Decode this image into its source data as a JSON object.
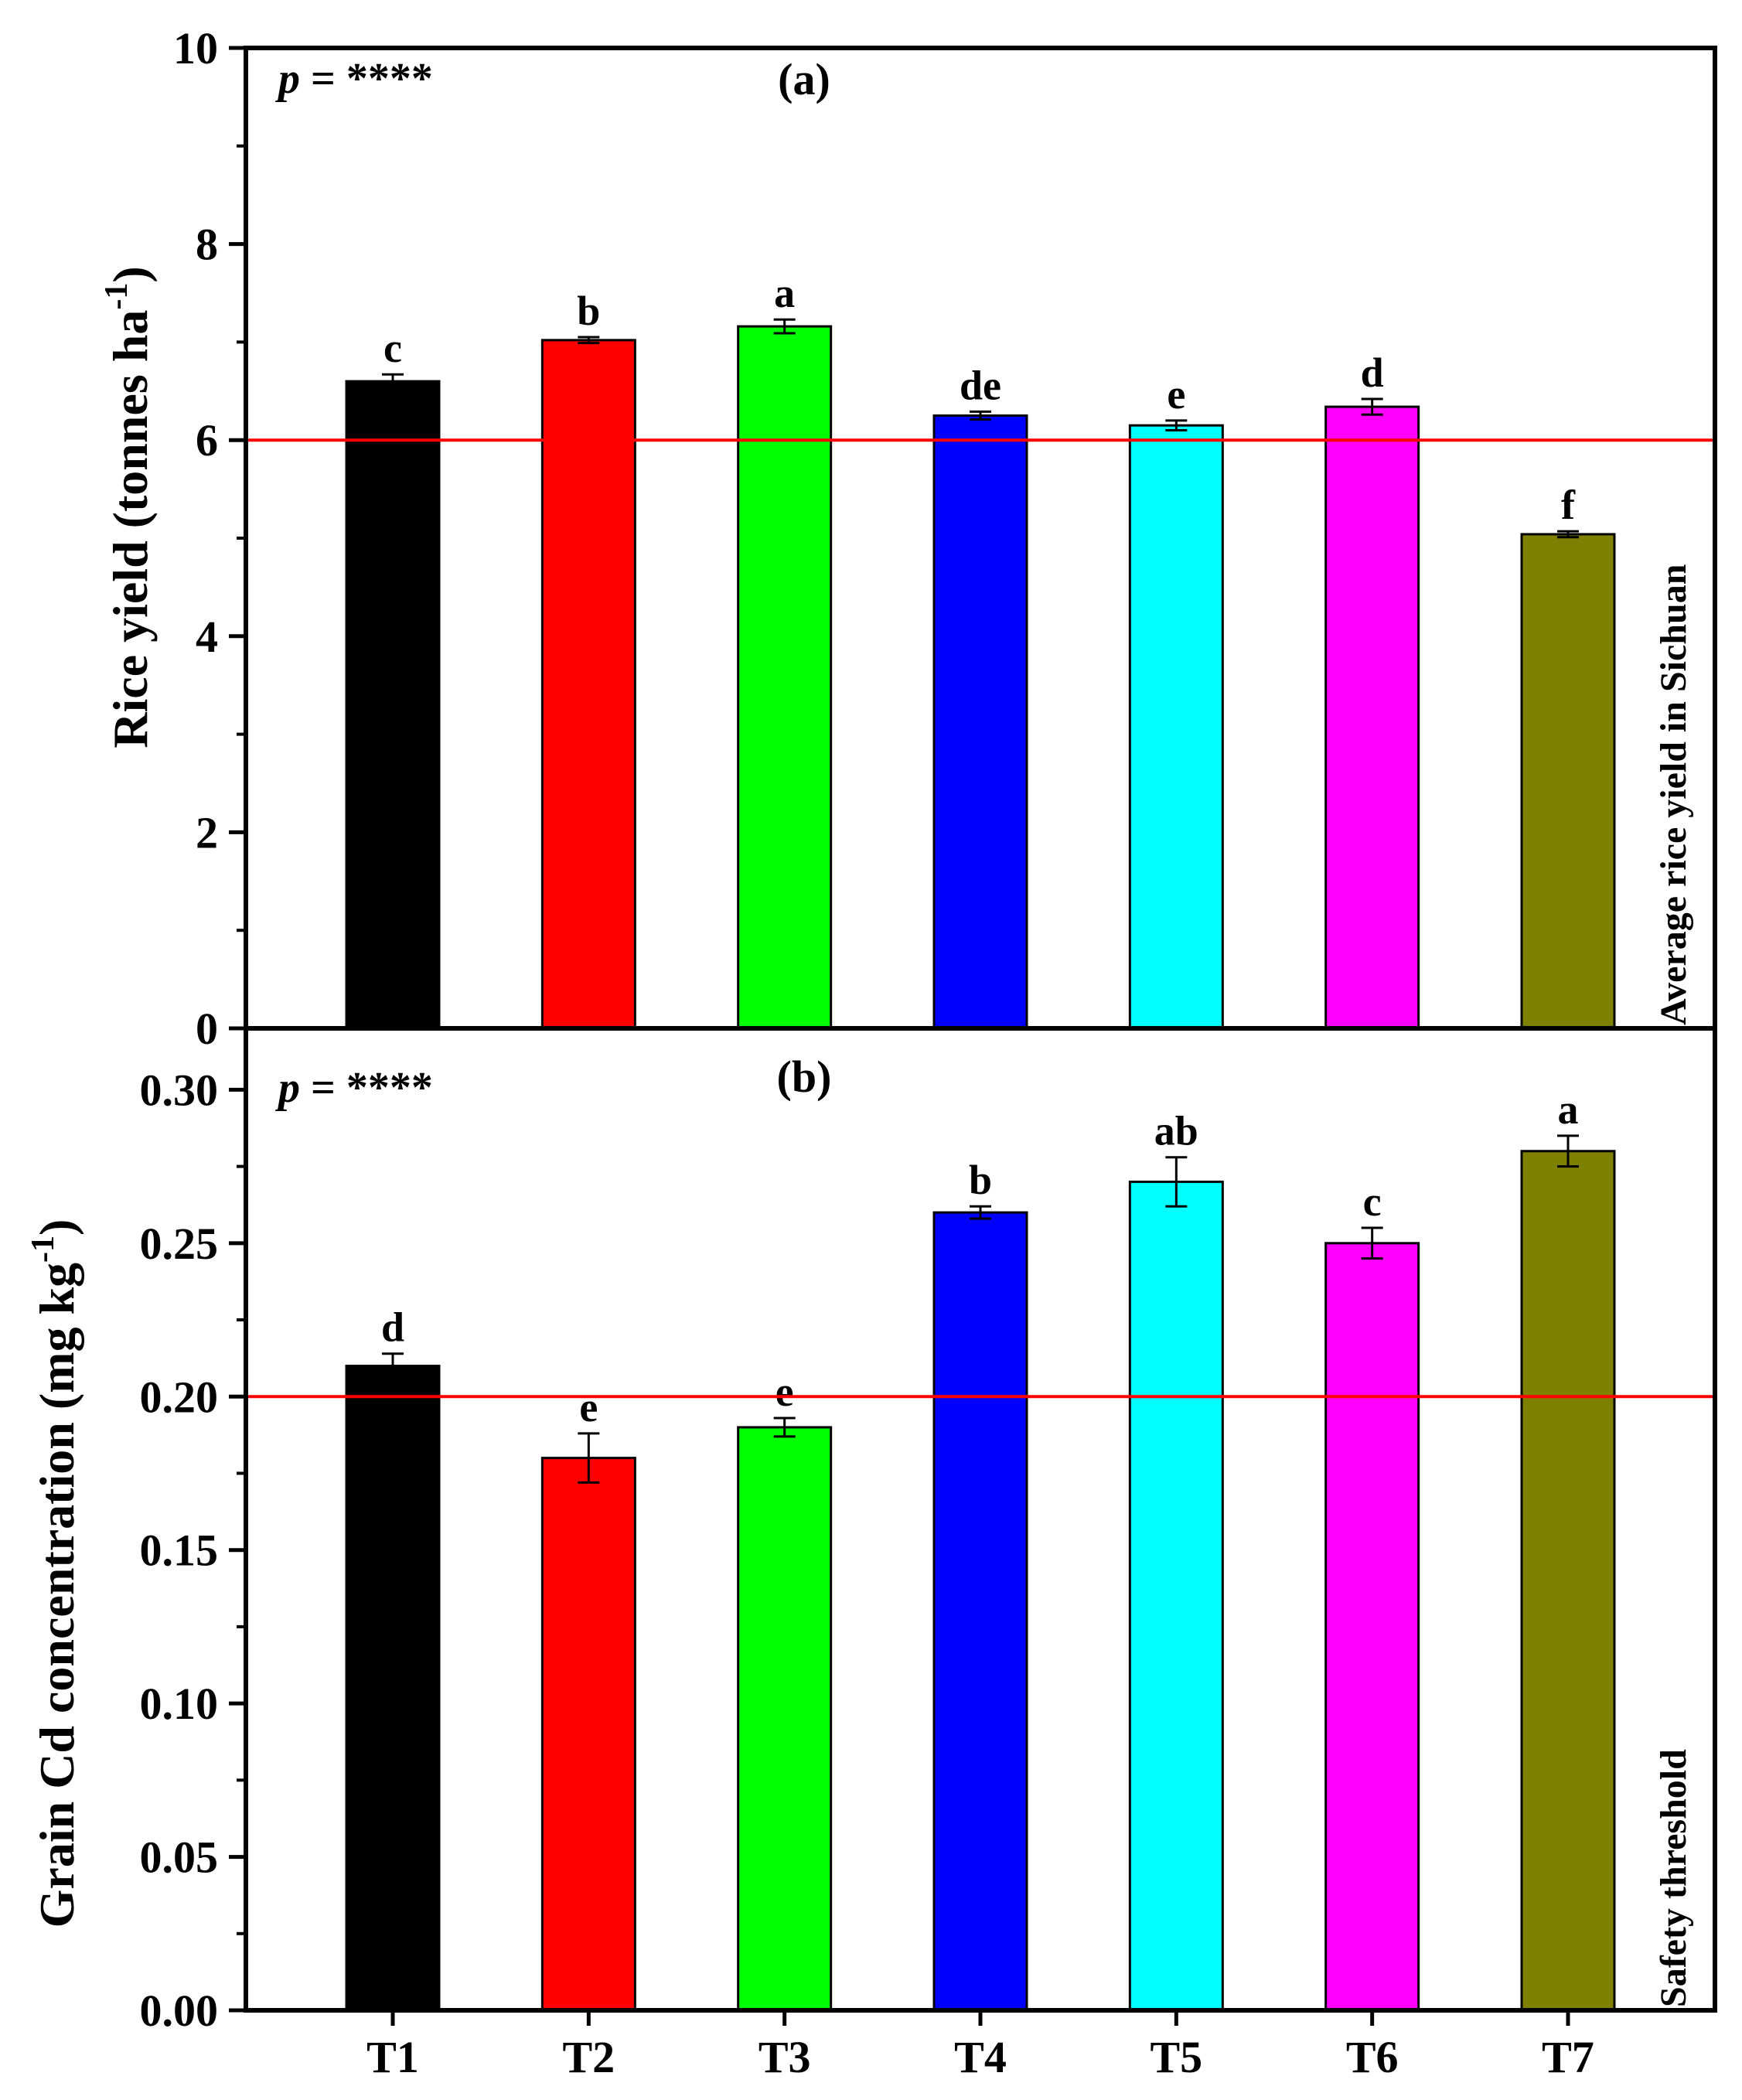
{
  "chart_data": [
    {
      "type": "bar",
      "panel_label": "(a)",
      "pvalue_label": "p",
      "pvalue_text": " = ****",
      "categories": [
        "T1",
        "T2",
        "T3",
        "T4",
        "T5",
        "T6",
        "T7"
      ],
      "values": [
        6.6,
        7.02,
        7.16,
        6.25,
        6.15,
        6.34,
        5.04
      ],
      "errors": [
        0.07,
        0.03,
        0.07,
        0.04,
        0.05,
        0.08,
        0.03
      ],
      "significance": [
        "c",
        "b",
        "a",
        "de",
        "e",
        "d",
        "f"
      ],
      "colors": [
        "#000000",
        "#ff0000",
        "#00ff00",
        "#0000ff",
        "#00ffff",
        "#ff00ff",
        "#808000"
      ],
      "ylabel_main": "Rice yield (tonnes ha",
      "ylabel_sup": "-1",
      "ylabel_end": ")",
      "ylim": [
        0,
        10
      ],
      "yticks": [
        "0",
        "2",
        "4",
        "6",
        "8",
        "10"
      ],
      "reference_line": {
        "value": 6.0,
        "color": "#ff0000",
        "label": "Average rice yield in Sichuan"
      },
      "grid": false
    },
    {
      "type": "bar",
      "panel_label": "(b)",
      "pvalue_label": "p",
      "pvalue_text": " = ****",
      "categories": [
        "T1",
        "T2",
        "T3",
        "T4",
        "T5",
        "T6",
        "T7"
      ],
      "values": [
        0.21,
        0.18,
        0.19,
        0.26,
        0.27,
        0.25,
        0.28
      ],
      "errors": [
        0.004,
        0.008,
        0.003,
        0.002,
        0.008,
        0.005,
        0.005
      ],
      "significance": [
        "d",
        "e",
        "e",
        "b",
        "ab",
        "c",
        "a"
      ],
      "colors": [
        "#000000",
        "#ff0000",
        "#00ff00",
        "#0000ff",
        "#00ffff",
        "#ff00ff",
        "#808000"
      ],
      "ylabel_main": "Grain Cd concentration (mg kg",
      "ylabel_sup": "-1",
      "ylabel_end": ")",
      "ylim": [
        0,
        0.32
      ],
      "yticks": [
        "0.00",
        "0.05",
        "0.10",
        "0.15",
        "0.20",
        "0.25",
        "0.30"
      ],
      "reference_line": {
        "value": 0.2,
        "color": "#ff0000",
        "label": "Safety threshold"
      },
      "grid": false
    }
  ]
}
